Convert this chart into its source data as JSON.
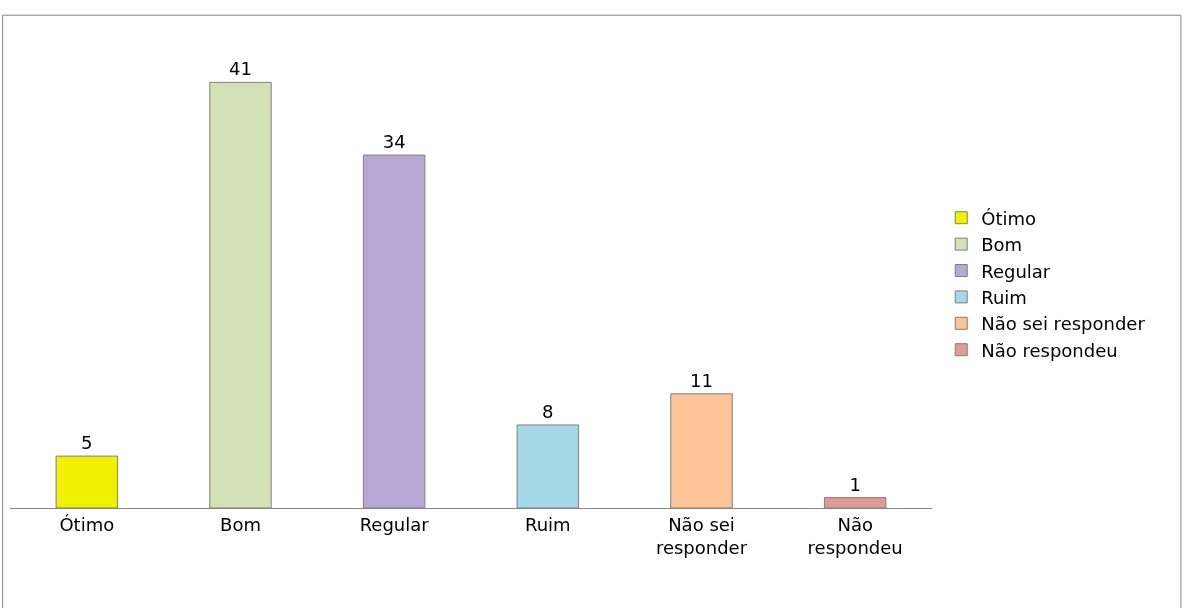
{
  "chart_data": {
    "type": "bar",
    "categories": [
      "Ótimo",
      "Bom",
      "Regular",
      "Ruim",
      "Não sei responder",
      "Não respondeu"
    ],
    "series": [
      {
        "name": "Ótimo",
        "color": "#f0f000",
        "values": [
          5,
          null,
          null,
          null,
          null,
          null
        ]
      },
      {
        "name": "Bom",
        "color": "#d2e2b4",
        "values": [
          null,
          41,
          null,
          null,
          null,
          null
        ]
      },
      {
        "name": "Regular",
        "color": "#b8a6d4",
        "values": [
          null,
          null,
          34,
          null,
          null,
          null
        ]
      },
      {
        "name": "Ruim",
        "color": "#a4d8e6",
        "values": [
          null,
          null,
          null,
          8,
          null,
          null
        ]
      },
      {
        "name": "Não sei responder",
        "color": "#fcc497",
        "values": [
          null,
          null,
          null,
          null,
          11,
          null
        ]
      },
      {
        "name": "Não respondeu",
        "color": "#e09a98",
        "values": [
          null,
          null,
          null,
          null,
          null,
          1
        ]
      }
    ],
    "data_labels": true,
    "legend": "right"
  }
}
